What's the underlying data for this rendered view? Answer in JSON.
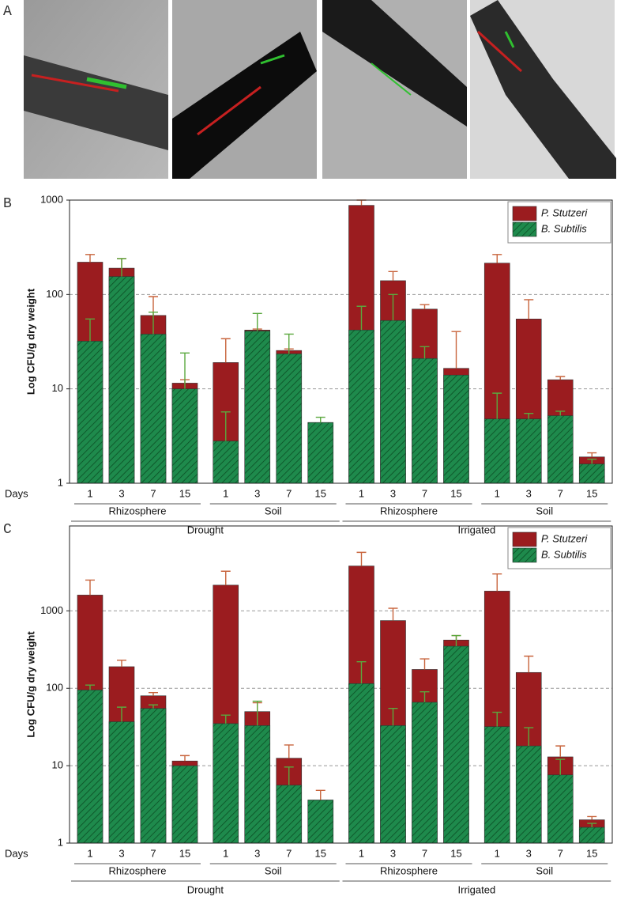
{
  "panel_a": {
    "label": "A"
  },
  "chart_data": [
    {
      "type": "bar",
      "label": "B",
      "ylabel": "Log CFU/g dry weight",
      "x_prefix": "Days",
      "log_scale": true,
      "grid": true,
      "legend": "upper right",
      "ylim": [
        1,
        1000
      ],
      "yticks": [
        1,
        10,
        100,
        1000
      ],
      "categories": [
        "1",
        "3",
        "7",
        "15",
        "1",
        "3",
        "7",
        "15",
        "1",
        "3",
        "7",
        "15",
        "1",
        "3",
        "7",
        "15"
      ],
      "groups": [
        {
          "name": "Drought",
          "subgroups": [
            "Rhizosphere",
            "Soil"
          ]
        },
        {
          "name": "Irrigated",
          "subgroups": [
            "Rhizosphere",
            "Soil"
          ]
        }
      ],
      "series": [
        {
          "name": "P. Stutzeri",
          "color": "#9b1c1f",
          "error_color": "#c8643c",
          "values": [
            220,
            190,
            60,
            11.5,
            19,
            42,
            25.5,
            4.4,
            880,
            140,
            70,
            16.5,
            215,
            55,
            12.5,
            1.9
          ],
          "errors": [
            45,
            50,
            35,
            1,
            15,
            1,
            1,
            null,
            120,
            35,
            8,
            24,
            50,
            33,
            1,
            0.2
          ]
        },
        {
          "name": "B. Subtilis",
          "color": "#1e8a4c",
          "error_color": "#5aa83e",
          "values": [
            32,
            155,
            38,
            10,
            2.8,
            41,
            23.5,
            4.4,
            42,
            53,
            21,
            14,
            4.8,
            4.8,
            5.2,
            1.6
          ],
          "errors": [
            23,
            85,
            27,
            14,
            2.9,
            22,
            14.5,
            0.6,
            33,
            47,
            7,
            null,
            4.2,
            0.7,
            0.6,
            0.2
          ]
        }
      ]
    },
    {
      "type": "bar",
      "label": "C",
      "ylabel": "Log CFU/g dry weight",
      "x_prefix": "Days",
      "log_scale": true,
      "grid": true,
      "legend": "upper right",
      "ylim": [
        1,
        12500
      ],
      "yticks": [
        1,
        10,
        100,
        1000
      ],
      "categories": [
        "1",
        "3",
        "7",
        "15",
        "1",
        "3",
        "7",
        "15",
        "1",
        "3",
        "7",
        "15",
        "1",
        "3",
        "7",
        "15"
      ],
      "groups": [
        {
          "name": "Drought",
          "subgroups": [
            "Rhizosphere",
            "Soil"
          ]
        },
        {
          "name": "Irrigated",
          "subgroups": [
            "Rhizosphere",
            "Soil"
          ]
        }
      ],
      "series": [
        {
          "name": "P. Stutzeri",
          "color": "#9b1c1f",
          "error_color": "#c8643c",
          "values": [
            1600,
            190,
            80,
            11.5,
            2150,
            50,
            12.5,
            3.6,
            3800,
            750,
            175,
            420,
            1800,
            160,
            13,
            2.0
          ],
          "errors": [
            900,
            40,
            8,
            2,
            1100,
            15,
            6,
            1.2,
            1900,
            330,
            65,
            60,
            1200,
            100,
            5,
            0.2
          ]
        },
        {
          "name": "B. Subtilis",
          "color": "#1e8a4c",
          "error_color": "#5aa83e",
          "values": [
            95,
            37,
            55,
            10,
            35,
            33,
            5.6,
            3.6,
            115,
            33,
            66,
            350,
            32,
            18,
            7.6,
            1.6
          ],
          "errors": [
            15,
            20,
            6,
            null,
            10,
            35,
            4,
            null,
            105,
            22,
            24,
            130,
            17,
            13,
            4.5,
            0.2
          ]
        }
      ]
    }
  ]
}
